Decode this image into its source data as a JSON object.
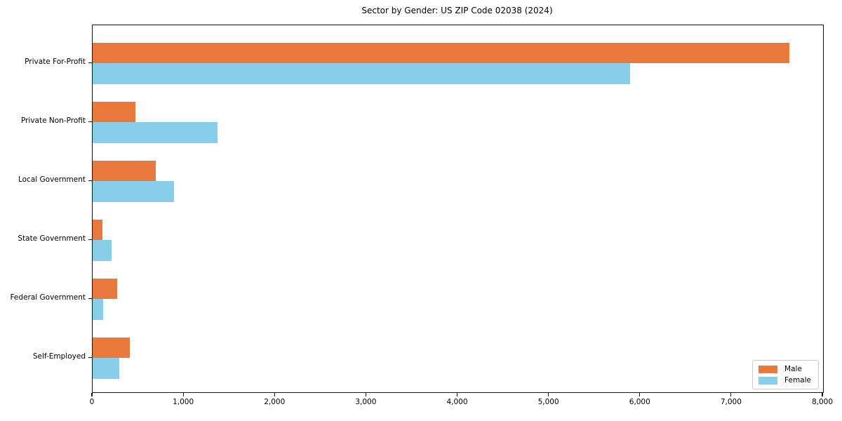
{
  "title": "Sector by Gender: US ZIP Code 02038 (2024)",
  "chart_data": {
    "type": "bar",
    "orientation": "horizontal",
    "title": "Sector by Gender: US ZIP Code 02038 (2024)",
    "categories": [
      "Private For-Profit",
      "Private Non-Profit",
      "Local Government",
      "State Government",
      "Federal Government",
      "Self-Employed"
    ],
    "series": [
      {
        "name": "Male",
        "color": "#E97A3C",
        "values": [
          7630,
          465,
          695,
          105,
          265,
          405
        ]
      },
      {
        "name": "Female",
        "color": "#87CEEB",
        "values": [
          5885,
          1365,
          890,
          205,
          115,
          290
        ]
      }
    ],
    "xlabel": "",
    "ylabel": "",
    "xlim": [
      0,
      8000
    ],
    "x_tick_values": [
      0,
      1000,
      2000,
      3000,
      4000,
      5000,
      6000,
      7000,
      8000
    ],
    "x_tick_labels": [
      "0",
      "1,000",
      "2,000",
      "3,000",
      "4,000",
      "5,000",
      "6,000",
      "7,000",
      "8,000"
    ],
    "grid": false,
    "legend_position": "lower right",
    "axis_color": "#141414",
    "legend_border_color": "#cccccc"
  }
}
